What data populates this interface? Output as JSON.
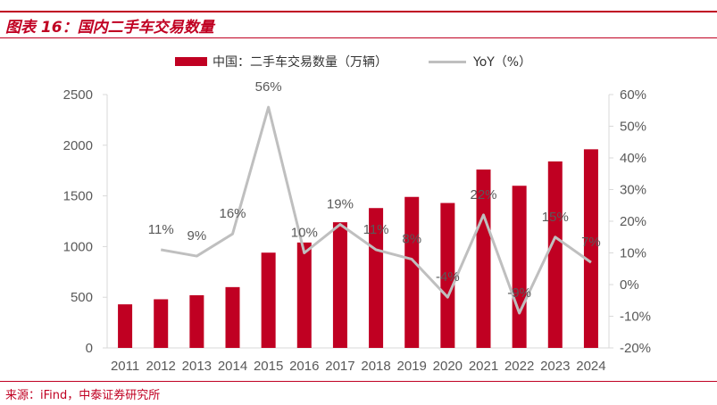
{
  "figure_title": "图表 16：国内二手车交易数量",
  "source": "来源：iFind，中泰证券研究所",
  "colors": {
    "accent": "#c00022",
    "line": "#bfbfbf",
    "axis": "#d9d9d9",
    "text": "#595959"
  },
  "chart_data": {
    "type": "bar",
    "title": "",
    "categories": [
      "2011",
      "2012",
      "2013",
      "2014",
      "2015",
      "2016",
      "2017",
      "2018",
      "2019",
      "2020",
      "2021",
      "2022",
      "2023",
      "2024"
    ],
    "legend": {
      "placement": "top"
    },
    "series": [
      {
        "name": "中国：二手车交易数量（万辆）",
        "type": "bar",
        "axis": "left",
        "values": [
          430,
          480,
          520,
          600,
          940,
          1040,
          1240,
          1380,
          1490,
          1430,
          1760,
          1600,
          1840,
          1960
        ]
      },
      {
        "name": "YoY（%）",
        "type": "line",
        "axis": "right",
        "values": [
          null,
          11,
          9,
          16,
          56,
          10,
          19,
          11,
          8,
          -4,
          22,
          -9,
          15,
          7
        ],
        "data_labels": [
          "",
          "11%",
          "9%",
          "16%",
          "56%",
          "10%",
          "19%",
          "11%",
          "8%",
          "-4%",
          "22%",
          "-9%",
          "15%",
          "7%"
        ]
      }
    ],
    "y_left": {
      "ylim": [
        0,
        2500
      ],
      "ticks": [
        "0",
        "500",
        "1000",
        "1500",
        "2000",
        "2500"
      ]
    },
    "y_right": {
      "ylim": [
        -20,
        60
      ],
      "ticks": [
        "-20%",
        "-10%",
        "0%",
        "10%",
        "20%",
        "30%",
        "40%",
        "50%",
        "60%"
      ]
    },
    "grid": false
  }
}
